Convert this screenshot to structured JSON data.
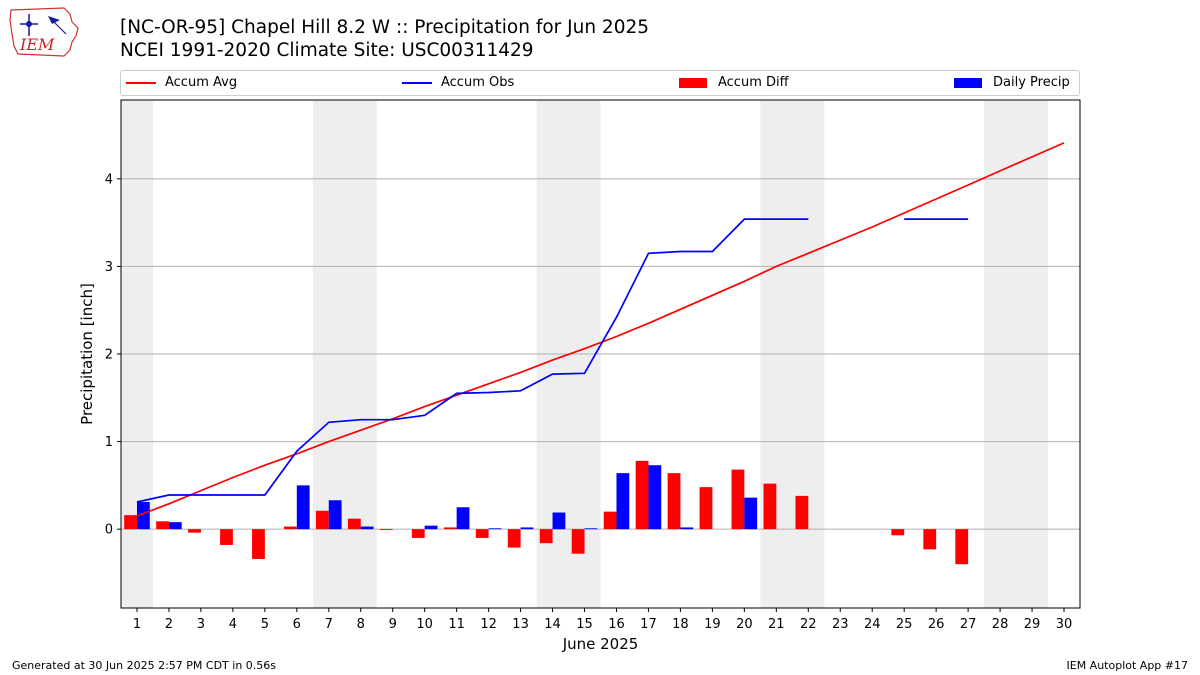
{
  "header": {
    "title_line1": "[NC-OR-95] Chapel Hill 8.2 W :: Precipitation for Jun 2025",
    "title_line2": "NCEI 1991-2020 Climate Site: USC00311429"
  },
  "logo": {
    "text": "IEM"
  },
  "footer": {
    "generated": "Generated at 30 Jun 2025 2:57 PM CDT in 0.56s",
    "app": "IEM Autoplot App #17"
  },
  "colors": {
    "accum_avg": "#ff0000",
    "accum_obs": "#0000ff",
    "accum_diff": "#ff0000",
    "daily_precip": "#0000ff",
    "weekend_shade": "#eeeeee",
    "grid": "#b0b0b0"
  },
  "chart_data": {
    "type": "bar",
    "xlabel": "June 2025",
    "ylabel": "Precipitation [inch]",
    "xlim": [
      0.5,
      30.5
    ],
    "ylim": [
      -0.9,
      4.9
    ],
    "yticks": [
      0,
      1,
      2,
      3,
      4
    ],
    "grid": "horizontal",
    "legend_placement": "top",
    "days": [
      1,
      2,
      3,
      4,
      5,
      6,
      7,
      8,
      9,
      10,
      11,
      12,
      13,
      14,
      15,
      16,
      17,
      18,
      19,
      20,
      21,
      22,
      23,
      24,
      25,
      26,
      27,
      28,
      29,
      30
    ],
    "weekend_days": [
      1,
      7,
      8,
      14,
      15,
      21,
      22,
      28,
      29
    ],
    "series": [
      {
        "name": "Accum Avg",
        "kind": "line",
        "values": [
          0.15,
          0.29,
          0.44,
          0.59,
          0.73,
          0.86,
          1.0,
          1.13,
          1.26,
          1.4,
          1.53,
          1.66,
          1.79,
          1.93,
          2.06,
          2.2,
          2.35,
          2.51,
          2.67,
          2.83,
          3.0,
          3.15,
          3.3,
          3.45,
          3.61,
          3.77,
          3.93,
          4.09,
          4.25,
          4.41
        ]
      },
      {
        "name": "Accum Obs",
        "kind": "line",
        "values": [
          0.31,
          0.39,
          0.39,
          0.39,
          0.39,
          0.89,
          1.22,
          1.25,
          1.25,
          1.3,
          1.55,
          1.56,
          1.58,
          1.77,
          1.78,
          2.42,
          3.15,
          3.17,
          3.17,
          3.54,
          3.54,
          3.54,
          null,
          null,
          3.54,
          3.54,
          3.54,
          null,
          null,
          null
        ]
      },
      {
        "name": "Accum Diff",
        "kind": "bar",
        "values": [
          0.16,
          0.09,
          -0.04,
          -0.18,
          -0.34,
          0.03,
          0.21,
          0.12,
          -0.01,
          -0.1,
          0.02,
          -0.1,
          -0.21,
          -0.16,
          -0.28,
          0.2,
          0.78,
          0.64,
          0.48,
          0.68,
          0.52,
          0.38,
          null,
          null,
          -0.07,
          -0.23,
          -0.4,
          null,
          null,
          null
        ]
      },
      {
        "name": "Daily Precip",
        "kind": "bar",
        "values": [
          0.31,
          0.08,
          0,
          0,
          0,
          0.5,
          0.33,
          0.03,
          0,
          0.04,
          0.25,
          0.01,
          0.02,
          0.19,
          0.01,
          0.64,
          0.73,
          0.02,
          0,
          0.36,
          0,
          0,
          null,
          null,
          0,
          0,
          0,
          null,
          null,
          null
        ]
      }
    ]
  }
}
